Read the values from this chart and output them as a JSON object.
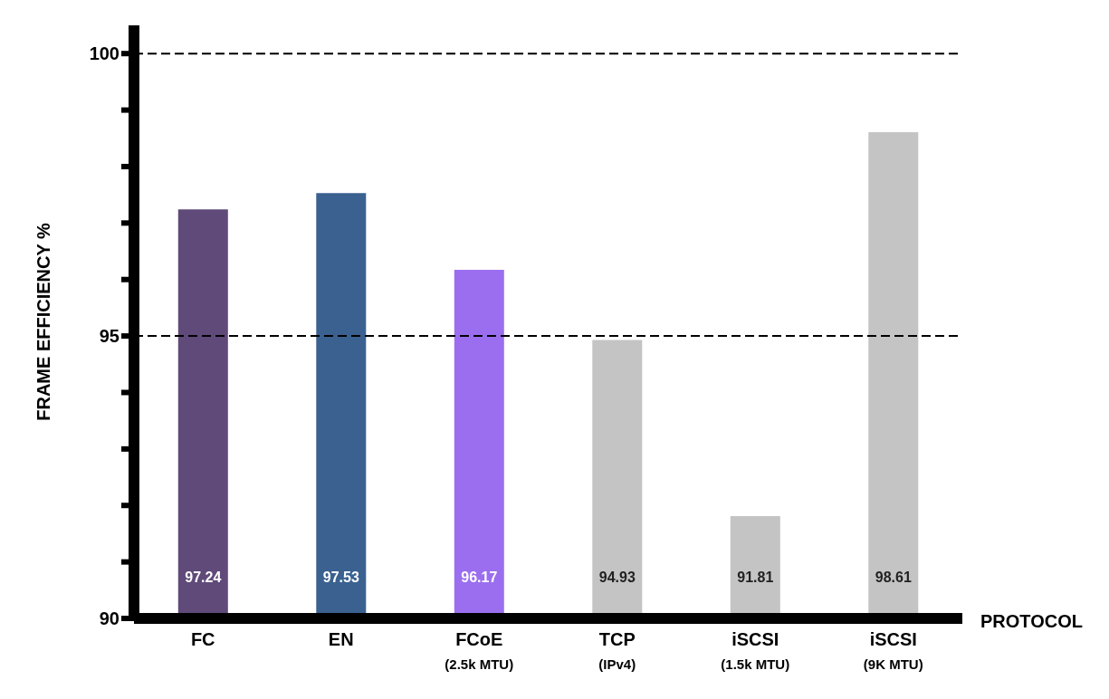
{
  "chart_data": {
    "type": "bar",
    "xlabel": "PROTOCOL",
    "ylabel": "FRAME EFFICIENCY %",
    "categories": [
      "FC",
      "EN",
      "FCoE\n(2.5k MTU)",
      "TCP\n(IPv4)",
      "iSCSI\n(1.5k MTU)",
      "iSCSI\n(9K MTU)"
    ],
    "values": [
      97.24,
      97.53,
      96.17,
      94.93,
      91.81,
      98.61
    ],
    "colors": [
      "#5f4a7a",
      "#3a6190",
      "#9b6ef0",
      "#c4c4c4",
      "#c4c4c4",
      "#c4c4c4"
    ],
    "ylim": [
      90,
      100.5
    ],
    "yticks": [
      90,
      {
        "value": 91,
        "label": null
      },
      {
        "value": 92,
        "label": null
      },
      {
        "value": 93,
        "label": null
      },
      {
        "value": 94,
        "label": null
      },
      95,
      {
        "value": 96,
        "label": null
      },
      {
        "value": 97,
        "label": null
      },
      {
        "value": 98,
        "label": null
      },
      {
        "value": 99,
        "label": null
      },
      100
    ],
    "ref_lines": [
      {
        "axis": "y",
        "value": 95,
        "line_style": "dashed",
        "color": "#000000"
      },
      {
        "axis": "y",
        "value": 100,
        "line_style": "dashed",
        "color": "#000000"
      }
    ],
    "data_labels": true,
    "grid": false,
    "legend": false
  }
}
